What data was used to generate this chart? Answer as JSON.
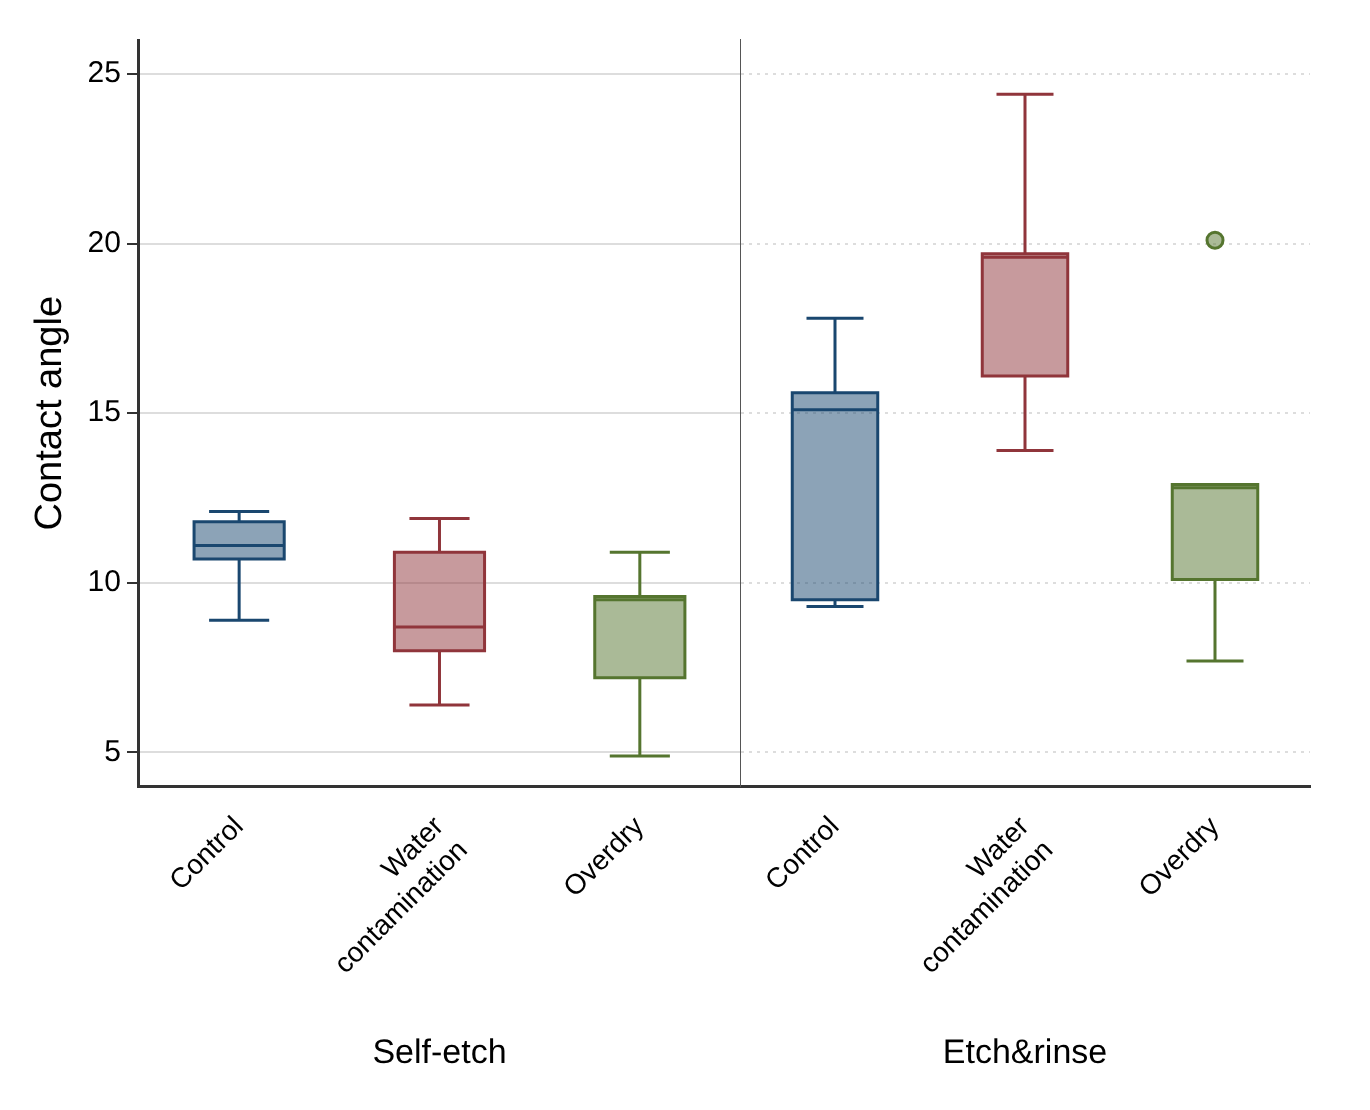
{
  "chart_data": [
    {
      "type": "box",
      "ylabel": "Contact angle",
      "xlabel": "Self-etch",
      "categories": [
        "Control",
        "Water contamination",
        "Overdry"
      ],
      "colors": [
        "#1a476f",
        "#90353b",
        "#55752f"
      ],
      "boxes": [
        {
          "low": 8.9,
          "q1": 10.7,
          "median": 11.1,
          "q3": 11.8,
          "high": 12.1
        },
        {
          "low": 6.4,
          "q1": 8.0,
          "median": 8.7,
          "q3": 10.9,
          "high": 11.9
        },
        {
          "low": 4.9,
          "q1": 7.2,
          "median": 9.5,
          "q3": 9.6,
          "high": 10.9
        }
      ],
      "ylim": [
        4,
        26
      ],
      "yticks": [
        5,
        10,
        15,
        20,
        25
      ],
      "grid": "y",
      "legend": false
    },
    {
      "type": "box",
      "xlabel": "Etch&rinse",
      "categories": [
        "Control",
        "Water contamination",
        "Overdry"
      ],
      "colors": [
        "#1a476f",
        "#90353b",
        "#55752f"
      ],
      "boxes": [
        {
          "low": 9.3,
          "q1": 9.5,
          "median": 15.1,
          "q3": 15.6,
          "high": 17.8
        },
        {
          "low": 13.9,
          "q1": 16.1,
          "median": 19.6,
          "q3": 19.7,
          "high": 24.4
        },
        {
          "low": 7.7,
          "q1": 10.1,
          "median": 12.8,
          "q3": 12.9,
          "high": 12.9,
          "outliers": [
            20.1
          ]
        }
      ],
      "ylim": [
        4,
        26
      ],
      "yticks": [
        5,
        10,
        15,
        20,
        25
      ],
      "grid": "y",
      "legend": false,
      "tick_labels": "x"
    }
  ]
}
